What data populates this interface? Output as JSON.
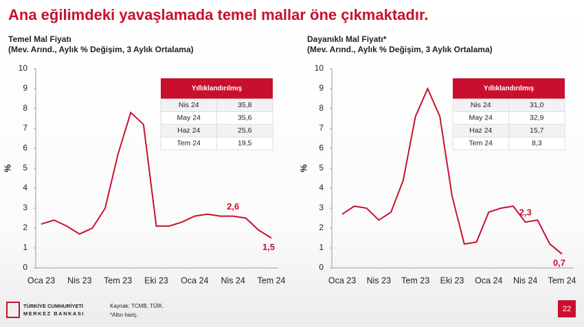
{
  "header": {
    "title": "Ana eğilimdeki yavaşlamada temel mallar öne çıkmaktadır."
  },
  "chart_data": [
    {
      "type": "line",
      "title": "Temel Mal Fiyatı",
      "subtitle": "(Mev. Arınd., Aylık % Değişim, 3 Aylık Ortalama)",
      "y_label": "%",
      "categories": [
        "Oca 23",
        null,
        null,
        "Nis 23",
        null,
        null,
        "Tem 23",
        null,
        null,
        "Eki 23",
        null,
        null,
        "Oca 24",
        null,
        null,
        "Nis 24",
        null,
        null,
        "Tem 24"
      ],
      "series": [
        {
          "name": "Temel Mal Fiyatı",
          "color": "#c8102e",
          "values": [
            2.2,
            2.4,
            2.1,
            1.7,
            2.0,
            3.0,
            5.7,
            7.8,
            7.2,
            2.1,
            2.1,
            2.3,
            2.6,
            2.7,
            2.6,
            2.6,
            2.5,
            1.9,
            1.5
          ],
          "value_labels": [
            null,
            null,
            null,
            null,
            null,
            null,
            null,
            null,
            null,
            null,
            null,
            null,
            null,
            null,
            null,
            "2,6",
            null,
            null,
            "1,5"
          ]
        }
      ],
      "ylim": [
        0,
        10
      ],
      "yticks": [
        0,
        1,
        2,
        3,
        4,
        5,
        6,
        7,
        8,
        9,
        10
      ],
      "grid": false,
      "table": {
        "header": "Yıllıklandırılmış",
        "rows": [
          [
            "Nis 24",
            "35,8"
          ],
          [
            "May 24",
            "35,6"
          ],
          [
            "Haz 24",
            "25,6"
          ],
          [
            "Tem 24",
            "19,5"
          ]
        ]
      }
    },
    {
      "type": "line",
      "title": "Dayanıklı Mal Fiyatı*",
      "subtitle": "(Mev. Arınd., Aylık % Değişim, 3 Aylık Ortalama)",
      "y_label": "%",
      "categories": [
        "Oca 23",
        null,
        null,
        "Nis 23",
        null,
        null,
        "Tem 23",
        null,
        null,
        "Eki 23",
        null,
        null,
        "Oca 24",
        null,
        null,
        "Nis 24",
        null,
        null,
        "Tem 24"
      ],
      "series": [
        {
          "name": "Dayanıklı Mal Fiyatı",
          "color": "#c8102e",
          "values": [
            2.7,
            3.1,
            3.0,
            2.4,
            2.8,
            4.4,
            7.6,
            9.0,
            7.6,
            3.6,
            1.2,
            1.3,
            2.8,
            3.0,
            3.1,
            2.3,
            2.4,
            1.2,
            0.7
          ],
          "value_labels": [
            null,
            null,
            null,
            null,
            null,
            null,
            null,
            null,
            null,
            null,
            null,
            null,
            null,
            null,
            null,
            "2,3",
            null,
            null,
            "0,7"
          ]
        }
      ],
      "ylim": [
        0,
        10
      ],
      "yticks": [
        0,
        1,
        2,
        3,
        4,
        5,
        6,
        7,
        8,
        9,
        10
      ],
      "grid": false,
      "table": {
        "header": "Yıllıklandırılmış",
        "rows": [
          [
            "Nis 24",
            "31,0"
          ],
          [
            "May 24",
            "32,9"
          ],
          [
            "Haz 24",
            "15,7"
          ],
          [
            "Tem 24",
            "8,3"
          ]
        ]
      }
    }
  ],
  "footer": {
    "logo_line1": "TÜRKİYE CUMHURİYETİ",
    "logo_line2": "MERKEZ BANKASI",
    "source": "Kaynak: TCMB, TÜİK.",
    "note": "*Altın hariç.",
    "page": "22"
  }
}
